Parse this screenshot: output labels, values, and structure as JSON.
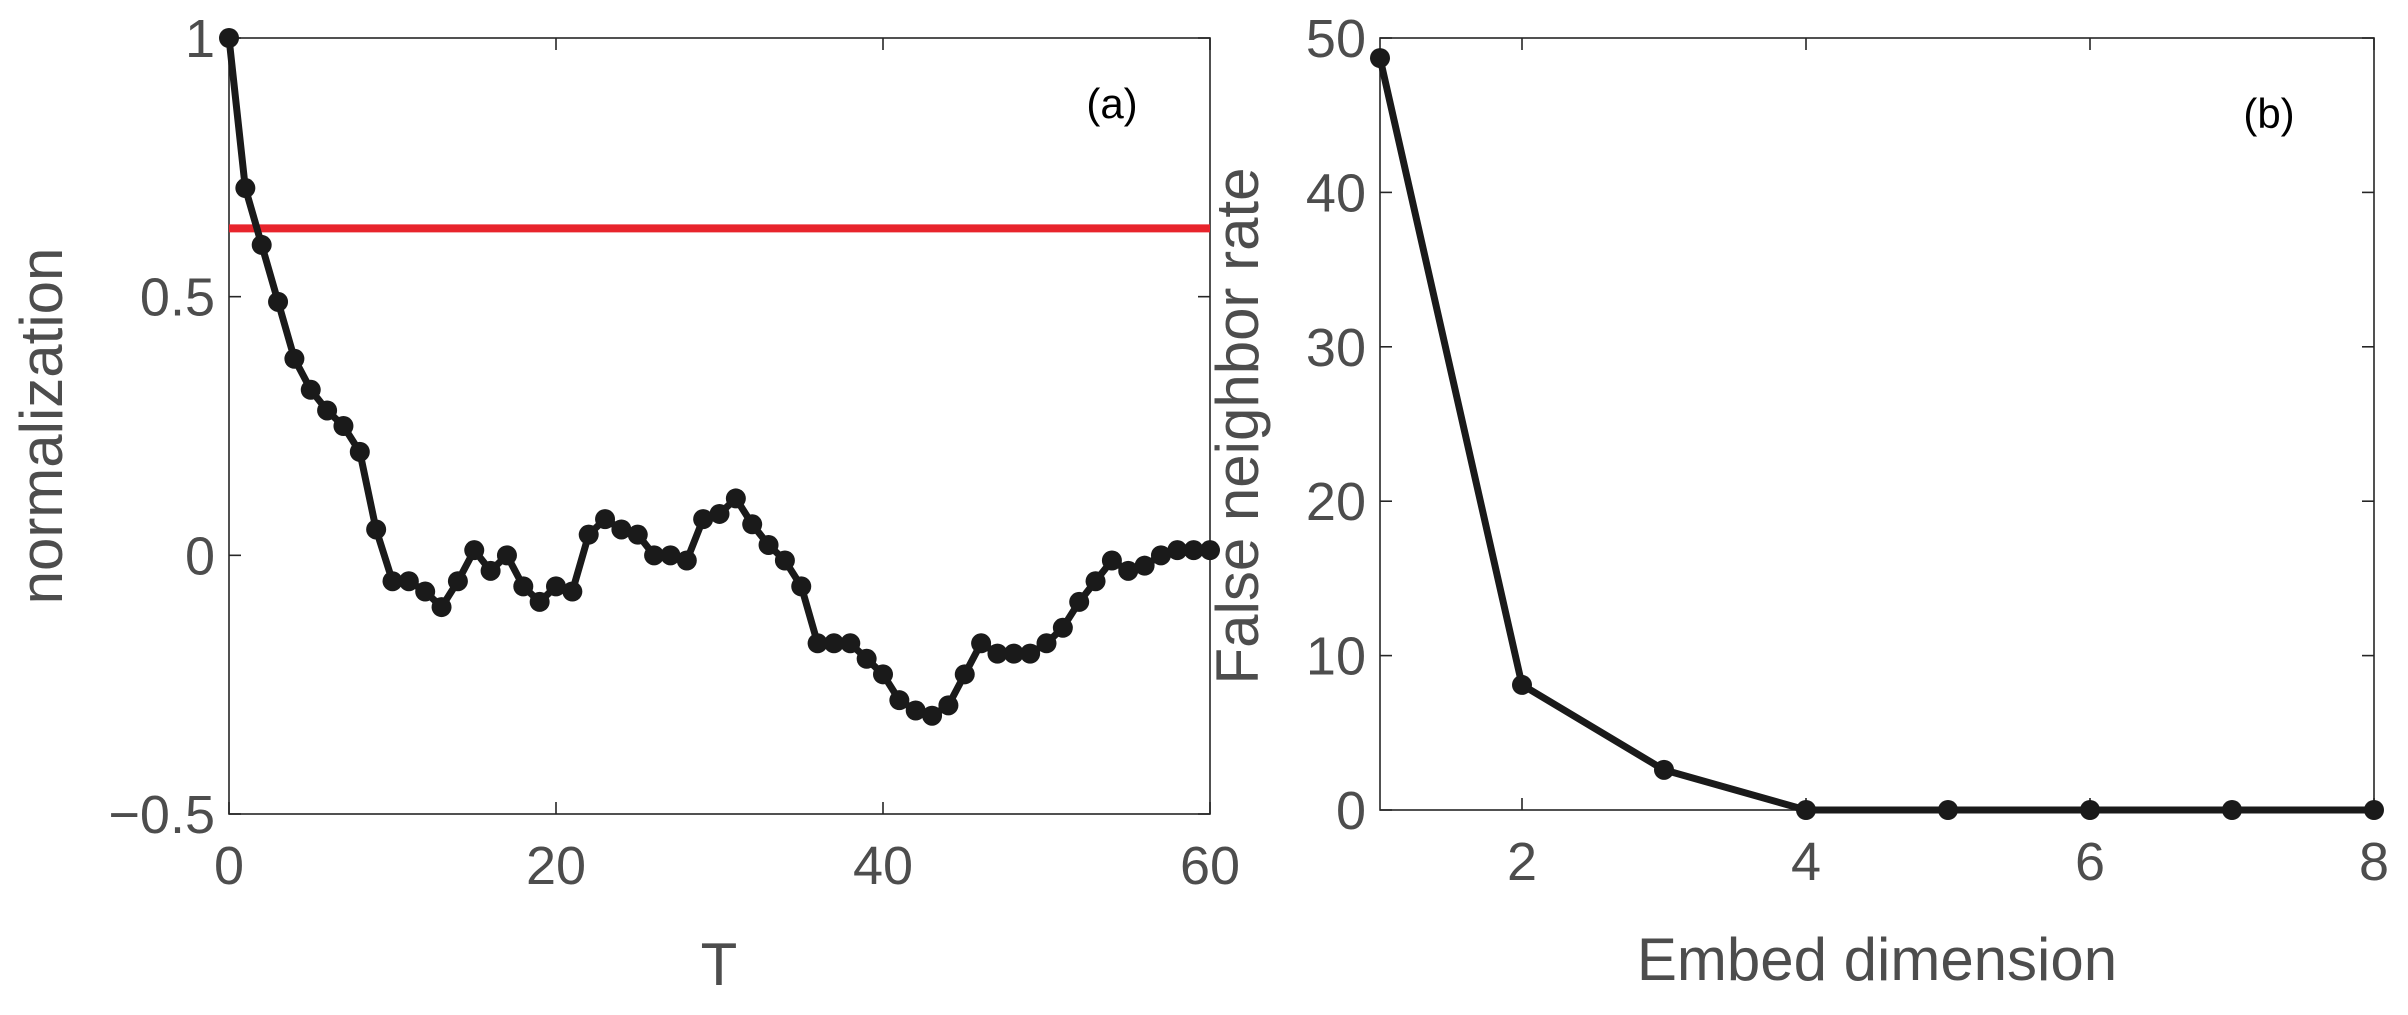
{
  "chart_data": [
    {
      "type": "line",
      "panel_label": "(a)",
      "xlabel": "T",
      "ylabel": "normalization",
      "xlim": [
        0,
        60
      ],
      "ylim": [
        -0.5,
        1
      ],
      "xticks": [
        0,
        20,
        40,
        60
      ],
      "xtick_labels": [
        "0",
        "20",
        "40",
        "60"
      ],
      "yticks": [
        -0.5,
        0,
        0.5,
        1
      ],
      "ytick_labels": [
        "−0.5",
        "0",
        "0.5",
        "1"
      ],
      "grid": false,
      "series": [
        {
          "color": "#1a1a1a",
          "marker": "circle",
          "x": [
            0,
            1,
            2,
            3,
            4,
            5,
            6,
            7,
            8,
            9,
            10,
            11,
            12,
            13,
            14,
            15,
            16,
            17,
            18,
            19,
            20,
            21,
            22,
            23,
            24,
            25,
            26,
            27,
            28,
            29,
            30,
            31,
            32,
            33,
            34,
            35,
            36,
            37,
            38,
            39,
            40,
            41,
            42,
            43,
            44,
            45,
            46,
            47,
            48,
            49,
            50,
            51,
            52,
            53,
            54,
            55,
            56,
            57,
            58,
            59,
            60
          ],
          "y": [
            1.0,
            0.71,
            0.6,
            0.49,
            0.38,
            0.32,
            0.28,
            0.25,
            0.2,
            0.05,
            -0.05,
            -0.05,
            -0.07,
            -0.1,
            -0.05,
            0.01,
            -0.03,
            0.0,
            -0.06,
            -0.09,
            -0.06,
            -0.07,
            0.04,
            0.07,
            0.05,
            0.04,
            0.0,
            0.0,
            -0.01,
            0.07,
            0.08,
            0.11,
            0.06,
            0.02,
            -0.01,
            -0.06,
            -0.17,
            -0.17,
            -0.17,
            -0.2,
            -0.23,
            -0.28,
            -0.3,
            -0.31,
            -0.29,
            -0.23,
            -0.17,
            -0.19,
            -0.19,
            -0.19,
            -0.17,
            -0.14,
            -0.09,
            -0.05,
            -0.01,
            -0.03,
            -0.02,
            0.0,
            0.01,
            0.01,
            0.01
          ]
        }
      ],
      "reference_line": {
        "y": 0.632,
        "color": "#e8242c"
      }
    },
    {
      "type": "line",
      "panel_label": "(b)",
      "xlabel": "Embed dimension",
      "ylabel": "False neighbor rate",
      "xlim": [
        1,
        8
      ],
      "ylim": [
        0,
        50
      ],
      "xticks": [
        2,
        4,
        6,
        8
      ],
      "xtick_labels": [
        "2",
        "4",
        "6",
        "8"
      ],
      "yticks": [
        0,
        10,
        20,
        30,
        40,
        50
      ],
      "ytick_labels": [
        "0",
        "10",
        "20",
        "30",
        "40",
        "50"
      ],
      "grid": false,
      "series": [
        {
          "color": "#1a1a1a",
          "marker": "circle",
          "x": [
            1,
            2,
            3,
            4,
            5,
            6,
            7,
            8
          ],
          "y": [
            48.7,
            8.1,
            2.6,
            0,
            0,
            0,
            0,
            0
          ]
        }
      ]
    }
  ]
}
